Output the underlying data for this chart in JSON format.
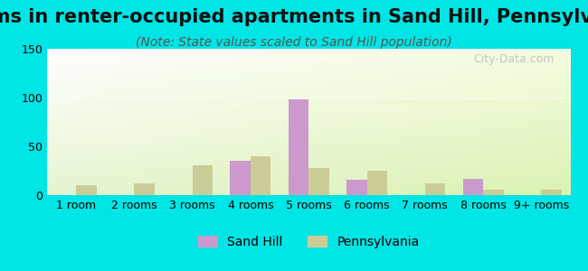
{
  "title": "Rooms in renter-occupied apartments in Sand Hill, Pennsylvania",
  "subtitle": "(Note: State values scaled to Sand Hill population)",
  "categories": [
    "1 room",
    "2 rooms",
    "3 rooms",
    "4 rooms",
    "5 rooms",
    "6 rooms",
    "7 rooms",
    "8 rooms",
    "9+ rooms"
  ],
  "sand_hill": [
    0,
    0,
    0,
    35,
    98,
    16,
    0,
    17,
    0
  ],
  "pennsylvania": [
    10,
    12,
    31,
    40,
    28,
    25,
    12,
    6,
    6
  ],
  "sand_hill_color": "#cc99cc",
  "pennsylvania_color": "#cccc99",
  "background_outer": "#00e5e5",
  "ylim": [
    0,
    150
  ],
  "yticks": [
    0,
    50,
    100,
    150
  ],
  "bar_width": 0.35,
  "title_fontsize": 15,
  "subtitle_fontsize": 10,
  "axis_label_fontsize": 9,
  "legend_fontsize": 10,
  "watermark": "City-Data.com"
}
